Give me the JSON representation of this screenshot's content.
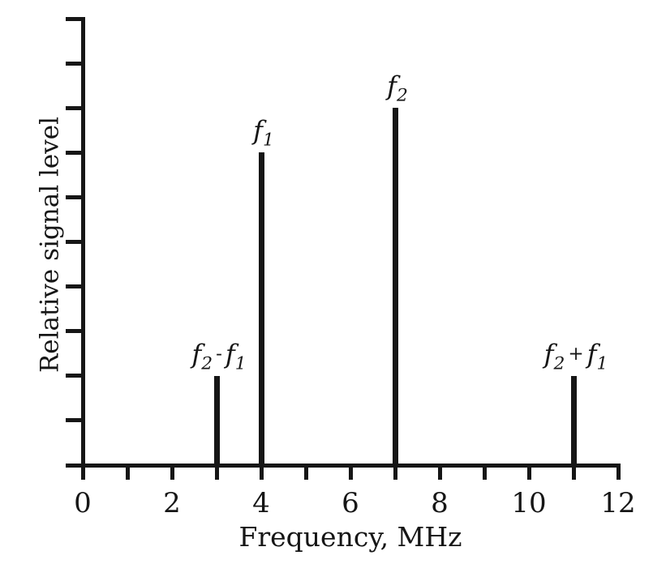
{
  "figure": {
    "background": "#ffffff",
    "ink_color": "#161616"
  },
  "chart_data": {
    "type": "bar",
    "subtype": "stem-spectrum",
    "title": "",
    "xlabel": "Frequency, MHz",
    "ylabel": "Relative signal level",
    "xlim": [
      0,
      12
    ],
    "ylim": [
      0,
      10
    ],
    "grid": false,
    "legend": null,
    "x_ticks": {
      "minor_values": [
        0,
        1,
        2,
        3,
        4,
        5,
        6,
        7,
        8,
        9,
        10,
        11,
        12
      ],
      "labeled_values": [
        0,
        2,
        4,
        6,
        8,
        10,
        12
      ],
      "labels": [
        "0",
        "2",
        "4",
        "6",
        "8",
        "10",
        "12"
      ]
    },
    "y_ticks": {
      "values": [
        0,
        1,
        2,
        3,
        4,
        5,
        6,
        7,
        8,
        9,
        10
      ],
      "labels_shown": false
    },
    "series": [
      {
        "label": "f2 - f1",
        "x_mhz": 3,
        "relative_level": 2
      },
      {
        "label": "f1",
        "x_mhz": 4,
        "relative_level": 7
      },
      {
        "label": "f2",
        "x_mhz": 7,
        "relative_level": 8
      },
      {
        "label": "f2 + f1",
        "x_mhz": 11,
        "relative_level": 2
      }
    ]
  }
}
